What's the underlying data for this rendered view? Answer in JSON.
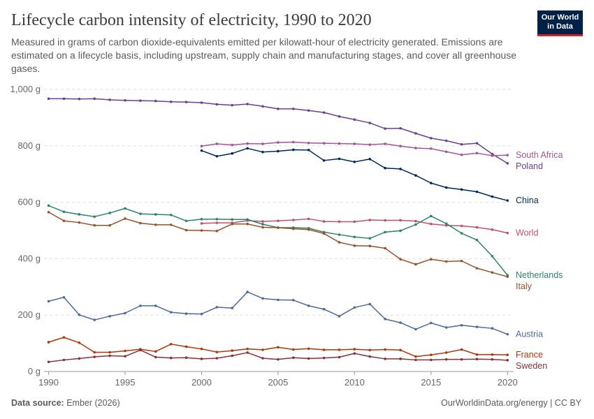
{
  "header": {
    "title": "Lifecycle carbon intensity of electricity, 1990 to 2020",
    "subtitle": "Measured in grams of carbon dioxide-equivalents emitted per kilowatt-hour of electricity generated. Emissions are estimated on a lifecycle basis, including upstream, supply chain and manufacturing stages, and cover all greenhouse gases.",
    "logo_line1": "Our World",
    "logo_line2": "in Data"
  },
  "footer": {
    "source_label": "Data source:",
    "source_value": "Ember (2026)",
    "right": "OurWorldinData.org/energy | CC BY"
  },
  "chart_data": {
    "type": "line",
    "title": "Lifecycle carbon intensity of electricity, 1990 to 2020",
    "xlabel": "",
    "ylabel": "",
    "xlim": [
      1989.7,
      2020.4
    ],
    "ylim": [
      0,
      1000
    ],
    "grid": true,
    "x_ticks": [
      1990,
      1995,
      2000,
      2005,
      2010,
      2015,
      2020
    ],
    "y_ticks": [
      {
        "value": 0,
        "label": "0 g"
      },
      {
        "value": 200,
        "label": "200 g"
      },
      {
        "value": 400,
        "label": "400 g"
      },
      {
        "value": 600,
        "label": "600 g"
      },
      {
        "value": 800,
        "label": "800 g"
      },
      {
        "value": 1000,
        "label": "1,000 g"
      }
    ],
    "legend_placement": "right (inline labels at line ends)",
    "series": [
      {
        "name": "Poland",
        "color": "#6d3e91",
        "start": 1990,
        "values": [
          967,
          967,
          966,
          967,
          963,
          961,
          960,
          959,
          956,
          955,
          953,
          947,
          944,
          948,
          940,
          931,
          931,
          925,
          918,
          904,
          893,
          881,
          861,
          862,
          844,
          827,
          818,
          805,
          809,
          771,
          738
        ]
      },
      {
        "name": "South Africa",
        "color": "#a2559c",
        "start": 2000,
        "values": [
          799,
          807,
          803,
          808,
          807,
          812,
          813,
          810,
          809,
          808,
          807,
          804,
          807,
          799,
          792,
          790,
          779,
          768,
          774,
          765,
          767
        ]
      },
      {
        "name": "China",
        "color": "#00295b",
        "start": 2000,
        "values": [
          783,
          763,
          773,
          791,
          778,
          781,
          786,
          785,
          748,
          754,
          743,
          753,
          721,
          718,
          695,
          668,
          652,
          645,
          637,
          620,
          606
        ]
      },
      {
        "name": "World",
        "color": "#c15065",
        "start": 2000,
        "values": [
          525,
          527,
          527,
          535,
          532,
          534,
          537,
          541,
          532,
          531,
          531,
          537,
          536,
          536,
          533,
          523,
          518,
          516,
          511,
          503,
          491
        ]
      },
      {
        "name": "Netherlands",
        "color": "#2c8465",
        "start": 1990,
        "values": [
          588,
          566,
          557,
          549,
          562,
          578,
          559,
          557,
          555,
          534,
          540,
          540,
          539,
          539,
          522,
          510,
          510,
          508,
          494,
          485,
          477,
          472,
          494,
          499,
          521,
          551,
          524,
          490,
          466,
          409,
          341
        ]
      },
      {
        "name": "Italy",
        "color": "#9a5129",
        "start": 1990,
        "values": [
          565,
          534,
          528,
          518,
          518,
          542,
          526,
          520,
          520,
          501,
          500,
          498,
          523,
          523,
          511,
          510,
          506,
          503,
          489,
          458,
          446,
          445,
          437,
          398,
          380,
          398,
          390,
          392,
          366,
          351,
          336
        ]
      },
      {
        "name": "Austria",
        "color": "#4c6a9c",
        "start": 1990,
        "values": [
          249,
          263,
          201,
          183,
          196,
          207,
          233,
          233,
          210,
          205,
          204,
          228,
          225,
          282,
          259,
          254,
          253,
          233,
          221,
          196,
          227,
          239,
          186,
          173,
          150,
          172,
          156,
          164,
          158,
          153,
          132
        ]
      },
      {
        "name": "France",
        "color": "#b13507",
        "start": 1990,
        "values": [
          104,
          121,
          102,
          68,
          68,
          73,
          79,
          71,
          97,
          88,
          80,
          69,
          74,
          80,
          77,
          86,
          78,
          81,
          77,
          77,
          79,
          76,
          78,
          76,
          53,
          59,
          67,
          78,
          60,
          60,
          59
        ]
      },
      {
        "name": "Sweden",
        "color": "#883039",
        "start": 1990,
        "values": [
          34,
          41,
          46,
          52,
          56,
          54,
          76,
          51,
          48,
          49,
          45,
          47,
          56,
          67,
          47,
          43,
          49,
          46,
          48,
          51,
          64,
          53,
          45,
          45,
          41,
          41,
          43,
          43,
          44,
          43,
          40
        ]
      }
    ]
  }
}
